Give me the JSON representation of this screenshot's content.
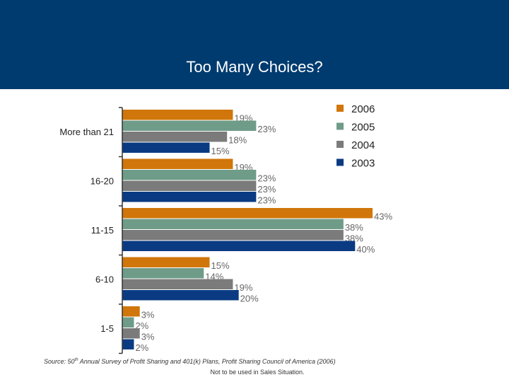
{
  "header": {
    "title": "Too Many Choices?"
  },
  "chart_data": {
    "type": "bar",
    "orientation": "horizontal",
    "title": "Too Many Choices?",
    "categories": [
      "More than 21",
      "16-20",
      "11-15",
      "6-10",
      "1-5"
    ],
    "series": [
      {
        "name": "2006",
        "color": "#d0760a",
        "values": [
          19,
          19,
          43,
          15,
          3
        ],
        "labels": [
          "19%",
          "19%",
          "43%",
          "15%",
          "3%"
        ]
      },
      {
        "name": "2005",
        "color": "#6f9c88",
        "values": [
          23,
          23,
          38,
          14,
          2
        ],
        "labels": [
          "23%",
          "23%",
          "38%",
          "14%",
          "2%"
        ]
      },
      {
        "name": "2004",
        "color": "#7b7b7b",
        "values": [
          18,
          23,
          38,
          19,
          3
        ],
        "labels": [
          "18%",
          "23%",
          "38%",
          "19%",
          "3%"
        ]
      },
      {
        "name": "2003",
        "color": "#0a3b82",
        "values": [
          15,
          23,
          40,
          20,
          2
        ],
        "labels": [
          "15%",
          "23%",
          "40%",
          "20%",
          "2%"
        ]
      }
    ],
    "xlim": [
      0,
      43
    ],
    "legend_position": "top-right",
    "grid": false
  },
  "source": {
    "prefix": "Source: 50",
    "sup": "th",
    "suffix": " Annual Survey of Profit Sharing and 401(k) Plans, Profit Sharing Council of America (2006)"
  },
  "footer": {
    "note": "Not to be used in Sales Situation."
  }
}
